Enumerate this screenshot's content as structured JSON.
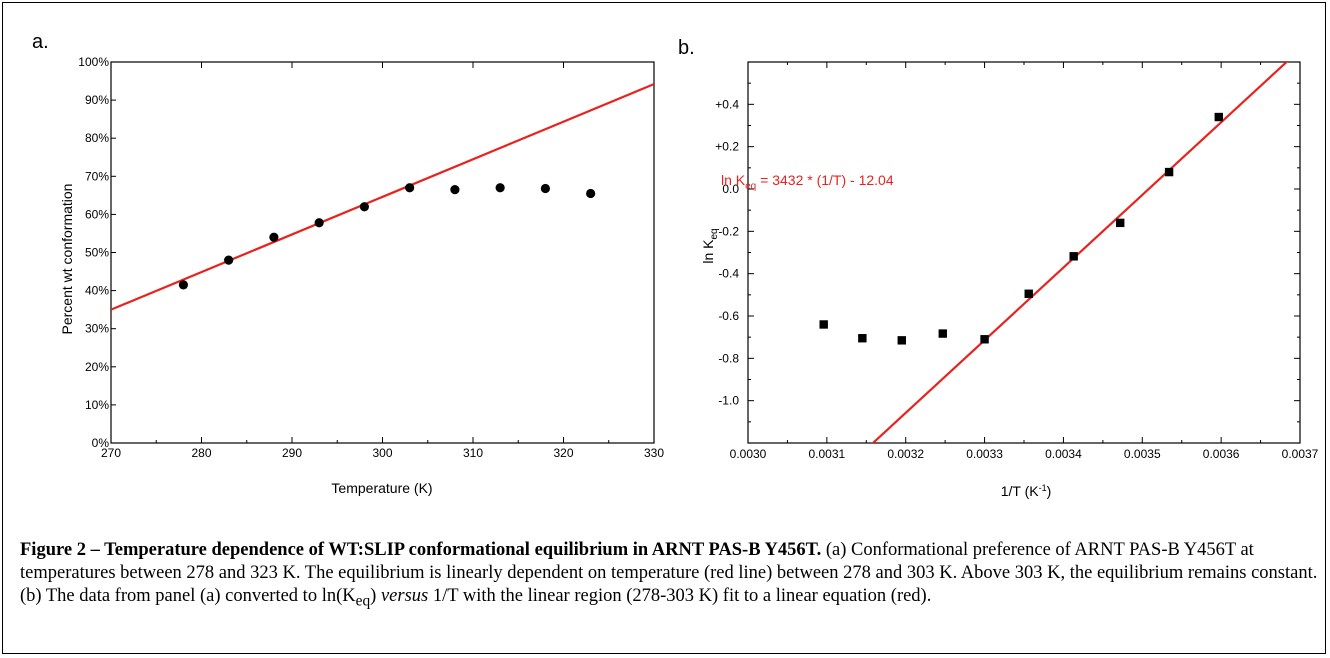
{
  "panel_a_label": "a.",
  "panel_b_label": "b.",
  "caption": {
    "title": "Figure 2 – Temperature dependence of WT:SLIP conformational equilibrium in ARNT PAS-B Y456T.",
    "text_1": " (a) Conformational preference of ARNT PAS-B Y456T at temperatures between 278 and 323 K. The equilibrium is linearly dependent on temperature (red line) between 278 and 303 K. Above 303 K, the equilibrium remains constant. (b) The data from panel (a) converted to ln(K",
    "sub": "eq",
    "text_2": ") ",
    "italic": "versus",
    "text_3": " 1/T with the linear region (278-303 K) fit to a linear equation (red)."
  },
  "chart_data": [
    {
      "type": "scatter",
      "xlabel": "Temperature (K)",
      "ylabel": "Percent wt conformation",
      "xlim": [
        270,
        330
      ],
      "ylim": [
        0,
        100
      ],
      "x_ticks": [
        270,
        280,
        290,
        300,
        310,
        320,
        330
      ],
      "y_ticks": [
        "0%",
        "10%",
        "20%",
        "30%",
        "40%",
        "50%",
        "60%",
        "70%",
        "80%",
        "90%",
        "100%"
      ],
      "points": [
        {
          "x": 278,
          "y": 41.5
        },
        {
          "x": 283,
          "y": 48.0
        },
        {
          "x": 288,
          "y": 54.0
        },
        {
          "x": 293,
          "y": 57.8
        },
        {
          "x": 298,
          "y": 62.0
        },
        {
          "x": 303,
          "y": 67.0
        },
        {
          "x": 308,
          "y": 66.5
        },
        {
          "x": 313,
          "y": 67.0
        },
        {
          "x": 318,
          "y": 66.8
        },
        {
          "x": 323,
          "y": 65.5
        }
      ],
      "fit_line": {
        "x": [
          270,
          330
        ],
        "y": [
          35.0,
          94.2
        ],
        "color": "#e8231f"
      },
      "marker": "circle",
      "marker_color": "#000000"
    },
    {
      "type": "scatter",
      "xlabel_main": "1/T (K",
      "xlabel_sup": "-1",
      "xlabel_end": ")",
      "ylabel_main": "ln K",
      "ylabel_sub": "eq",
      "xlim": [
        0.003,
        0.0037
      ],
      "ylim": [
        -1.2,
        0.6
      ],
      "x_ticks": [
        "0.0030",
        "0.0031",
        "0.0032",
        "0.0033",
        "0.0034",
        "0.0035",
        "0.0036",
        "0.0037"
      ],
      "y_ticks": [
        "-1.0",
        "-0.8",
        "-0.6",
        "-0.4",
        "-0.2",
        "0.0",
        "+0.2",
        "+0.4"
      ],
      "y_tick_values": [
        -1.0,
        -0.8,
        -0.6,
        -0.4,
        -0.2,
        0.0,
        0.2,
        0.4
      ],
      "points": [
        {
          "x": 0.003096,
          "y": -0.64
        },
        {
          "x": 0.003145,
          "y": -0.705
        },
        {
          "x": 0.003195,
          "y": -0.715
        },
        {
          "x": 0.003247,
          "y": -0.683
        },
        {
          "x": 0.0033,
          "y": -0.71
        },
        {
          "x": 0.003356,
          "y": -0.495
        },
        {
          "x": 0.003413,
          "y": -0.318
        },
        {
          "x": 0.003472,
          "y": -0.16
        },
        {
          "x": 0.003534,
          "y": 0.08
        },
        {
          "x": 0.003597,
          "y": 0.34
        }
      ],
      "fit_line": {
        "slope": 3432,
        "intercept": -12.04,
        "color": "#e8231f"
      },
      "equation_main": "ln K",
      "equation_sub": "eq",
      "equation_rest": " = 3432 * (1/T) - 12.04",
      "marker": "square",
      "marker_color": "#000000"
    }
  ]
}
